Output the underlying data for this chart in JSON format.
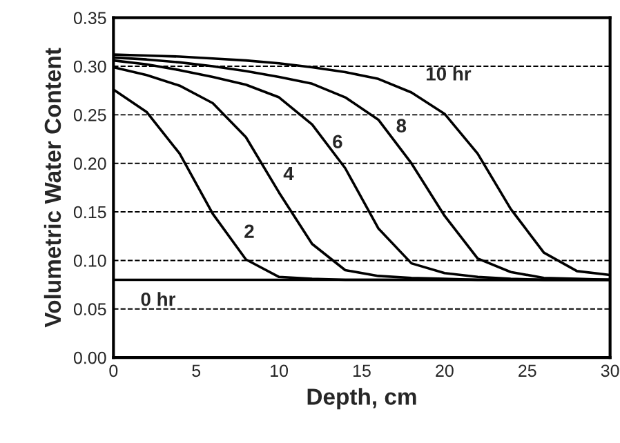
{
  "chart_data": {
    "type": "line",
    "xlabel": "Depth, cm",
    "ylabel": "Volumetric Water Content",
    "x": [
      0,
      2,
      4,
      6,
      8,
      10,
      12,
      14,
      16,
      18,
      20,
      22,
      24,
      26,
      28,
      30
    ],
    "series": [
      {
        "name": "0 hr",
        "color": "#000000",
        "values": [
          0.08,
          0.08,
          0.08,
          0.08,
          0.08,
          0.08,
          0.08,
          0.08,
          0.08,
          0.08,
          0.08,
          0.08,
          0.08,
          0.08,
          0.08,
          0.08
        ]
      },
      {
        "name": "2",
        "color": "#000000",
        "values": [
          0.276,
          0.253,
          0.21,
          0.148,
          0.101,
          0.083,
          0.081,
          0.08,
          0.08,
          0.08,
          0.08,
          0.08,
          0.08,
          0.08,
          0.08,
          0.08
        ]
      },
      {
        "name": "4",
        "color": "#000000",
        "values": [
          0.299,
          0.291,
          0.28,
          0.262,
          0.227,
          0.17,
          0.117,
          0.09,
          0.084,
          0.082,
          0.081,
          0.08,
          0.08,
          0.08,
          0.08,
          0.08
        ]
      },
      {
        "name": "6",
        "color": "#000000",
        "values": [
          0.306,
          0.302,
          0.296,
          0.289,
          0.281,
          0.268,
          0.24,
          0.195,
          0.133,
          0.097,
          0.087,
          0.083,
          0.081,
          0.08,
          0.08,
          0.08
        ]
      },
      {
        "name": "8",
        "color": "#000000",
        "values": [
          0.309,
          0.307,
          0.304,
          0.3,
          0.295,
          0.289,
          0.282,
          0.268,
          0.245,
          0.2,
          0.146,
          0.102,
          0.088,
          0.082,
          0.081,
          0.08
        ]
      },
      {
        "name": "10 hr",
        "color": "#000000",
        "values": [
          0.312,
          0.311,
          0.31,
          0.308,
          0.306,
          0.303,
          0.299,
          0.294,
          0.287,
          0.273,
          0.251,
          0.21,
          0.153,
          0.108,
          0.089,
          0.085
        ]
      }
    ],
    "xlim": [
      0,
      30
    ],
    "xticks": [
      0,
      5,
      10,
      15,
      20,
      25,
      30
    ],
    "ylim": [
      0,
      0.35
    ],
    "yticks": [
      {
        "value": 0,
        "label": "0.00"
      },
      {
        "value": 0.05,
        "label": "0.05"
      },
      {
        "value": 0.1,
        "label": "0.10"
      },
      {
        "value": 0.15,
        "label": "0.15"
      },
      {
        "value": 0.2,
        "label": "0.20"
      },
      {
        "value": 0.25,
        "label": "0.25"
      },
      {
        "value": 0.3,
        "label": "0.30"
      },
      {
        "value": 0.35,
        "label": "0.35"
      }
    ],
    "grid": "y",
    "legend": false,
    "marker": "none",
    "line_style": "solid"
  }
}
